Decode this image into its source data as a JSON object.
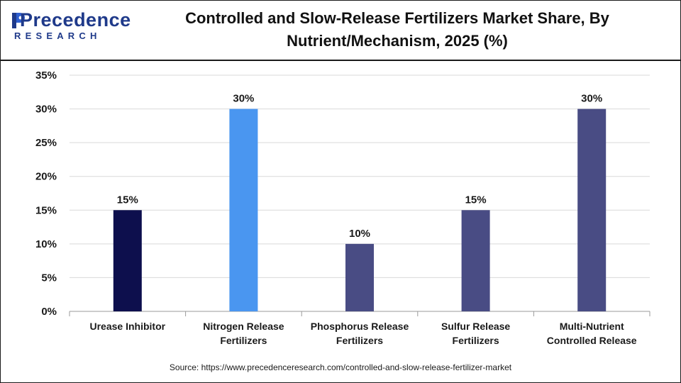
{
  "header": {
    "logo_name": "Precedence",
    "logo_sub": "RESEARCH",
    "title_line1": "Controlled and Slow-Release Fertilizers Market Share, By",
    "title_line2": "Nutrient/Mechanism, 2025 (%)"
  },
  "colors": {
    "brand": "#1f3a8a",
    "grid": "#d9d9d9",
    "axis": "#9a9a9a"
  },
  "chart_data": {
    "type": "bar",
    "categories": [
      [
        "Urease Inhibitor"
      ],
      [
        "Nitrogen Release",
        "Fertilizers"
      ],
      [
        "Phosphorus Release",
        "Fertilizers"
      ],
      [
        "Sulfur Release",
        "Fertilizers"
      ],
      [
        "Multi-Nutrient",
        "Controlled Release"
      ]
    ],
    "values": [
      15,
      30,
      10,
      15,
      30
    ],
    "data_labels": [
      "15%",
      "30%",
      "10%",
      "15%",
      "30%"
    ],
    "bar_colors": [
      "#0d0f4d",
      "#4a96f0",
      "#494c84",
      "#494c84",
      "#494c84"
    ],
    "ylim": [
      0,
      35
    ],
    "yticks": [
      0,
      5,
      10,
      15,
      20,
      25,
      30,
      35
    ],
    "ytick_labels": [
      "0%",
      "5%",
      "10%",
      "15%",
      "20%",
      "25%",
      "30%",
      "35%"
    ],
    "grid": true,
    "title": "Controlled and Slow-Release Fertilizers Market Share, By Nutrient/Mechanism, 2025 (%)",
    "xlabel": "",
    "ylabel": ""
  },
  "footer": {
    "source": "Source: https://www.precedenceresearch.com/controlled-and-slow-release-fertilizer-market"
  }
}
